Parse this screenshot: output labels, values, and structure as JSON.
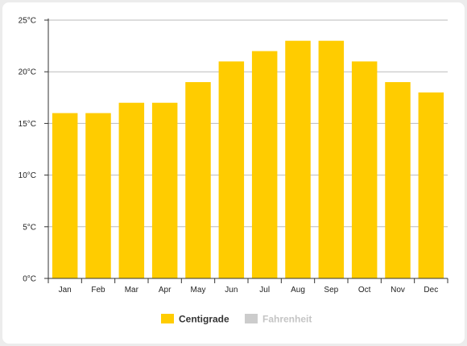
{
  "chart_data": {
    "type": "bar",
    "categories": [
      "Jan",
      "Feb",
      "Mar",
      "Apr",
      "May",
      "Jun",
      "Jul",
      "Aug",
      "Sep",
      "Oct",
      "Nov",
      "Dec"
    ],
    "series": [
      {
        "name": "Centigrade",
        "values": [
          16,
          16,
          17,
          17,
          19,
          21,
          22,
          23,
          23,
          21,
          19,
          18
        ],
        "color": "#ffcc00",
        "active": true
      },
      {
        "name": "Fahrenheit",
        "color": "#cccccc",
        "active": false
      }
    ],
    "yticks": [
      "0°C",
      "5°C",
      "10°C",
      "15°C",
      "20°C",
      "25°C"
    ],
    "ylim": [
      0,
      25
    ],
    "ystep": 5,
    "title": "",
    "xlabel": "",
    "ylabel": "",
    "grid": true,
    "legend_position": "bottom-center"
  }
}
